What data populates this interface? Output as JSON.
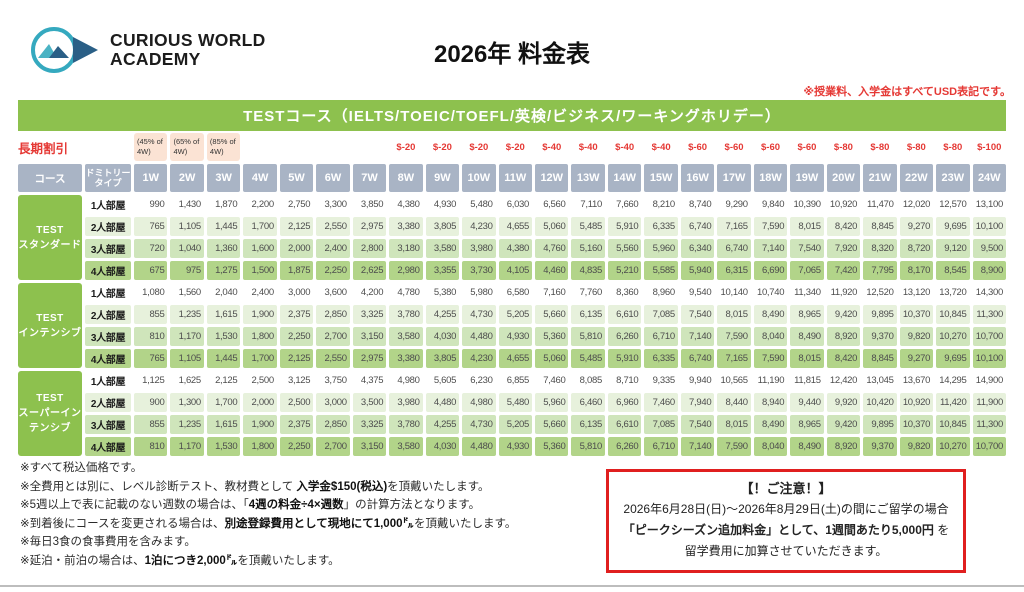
{
  "header": {
    "logo_line1": "CURIOUS WORLD",
    "logo_line2": "ACADEMY",
    "title": "2026年 料金表",
    "usd_note": "※授業料、入学金はすべてUSD表記です。"
  },
  "table": {
    "banner": "TESTコース（IELTS/TOEIC/TOEFL/英検/ビジネス/ワーキングホリデー）",
    "discount_label": "長期割引",
    "discount_cells": [
      {
        "type": "pink",
        "l1": "(45% of",
        "l2": "4W)"
      },
      {
        "type": "pink",
        "l1": "(65% of",
        "l2": "4W)"
      },
      {
        "type": "pink",
        "l1": "(85% of",
        "l2": "4W)"
      },
      {
        "type": "empty"
      },
      {
        "type": "empty"
      },
      {
        "type": "empty"
      },
      {
        "type": "empty"
      },
      {
        "type": "amount",
        "text": "$-20"
      },
      {
        "type": "amount",
        "text": "$-20"
      },
      {
        "type": "amount",
        "text": "$-20"
      },
      {
        "type": "amount",
        "text": "$-20"
      },
      {
        "type": "amount",
        "text": "$-40"
      },
      {
        "type": "amount",
        "text": "$-40"
      },
      {
        "type": "amount",
        "text": "$-40"
      },
      {
        "type": "amount",
        "text": "$-40"
      },
      {
        "type": "amount",
        "text": "$-60"
      },
      {
        "type": "amount",
        "text": "$-60"
      },
      {
        "type": "amount",
        "text": "$-60"
      },
      {
        "type": "amount",
        "text": "$-60"
      },
      {
        "type": "amount",
        "text": "$-80"
      },
      {
        "type": "amount",
        "text": "$-80"
      },
      {
        "type": "amount",
        "text": "$-80"
      },
      {
        "type": "amount",
        "text": "$-80"
      },
      {
        "type": "amount",
        "text": "$-100"
      }
    ],
    "col_course": "コース",
    "col_dorm_lines": [
      "ドミトリー",
      "タイプ"
    ],
    "weeks": [
      "1W",
      "2W",
      "3W",
      "4W",
      "5W",
      "6W",
      "7W",
      "8W",
      "9W",
      "10W",
      "11W",
      "12W",
      "13W",
      "14W",
      "15W",
      "16W",
      "17W",
      "18W",
      "19W",
      "20W",
      "21W",
      "22W",
      "23W",
      "24W"
    ],
    "groups": [
      {
        "course_lines": [
          "TEST",
          "スタンダード"
        ],
        "rows": [
          {
            "room": "1人部屋",
            "values": [
              "990",
              "1,430",
              "1,870",
              "2,200",
              "2,750",
              "3,300",
              "3,850",
              "4,380",
              "4,930",
              "5,480",
              "6,030",
              "6,560",
              "7,110",
              "7,660",
              "8,210",
              "8,740",
              "9,290",
              "9,840",
              "10,390",
              "10,920",
              "11,470",
              "12,020",
              "12,570",
              "13,100"
            ]
          },
          {
            "room": "2人部屋",
            "values": [
              "765",
              "1,105",
              "1,445",
              "1,700",
              "2,125",
              "2,550",
              "2,975",
              "3,380",
              "3,805",
              "4,230",
              "4,655",
              "5,060",
              "5,485",
              "5,910",
              "6,335",
              "6,740",
              "7,165",
              "7,590",
              "8,015",
              "8,420",
              "8,845",
              "9,270",
              "9,695",
              "10,100"
            ]
          },
          {
            "room": "3人部屋",
            "values": [
              "720",
              "1,040",
              "1,360",
              "1,600",
              "2,000",
              "2,400",
              "2,800",
              "3,180",
              "3,580",
              "3,980",
              "4,380",
              "4,760",
              "5,160",
              "5,560",
              "5,960",
              "6,340",
              "6,740",
              "7,140",
              "7,540",
              "7,920",
              "8,320",
              "8,720",
              "9,120",
              "9,500"
            ]
          },
          {
            "room": "4人部屋",
            "values": [
              "675",
              "975",
              "1,275",
              "1,500",
              "1,875",
              "2,250",
              "2,625",
              "2,980",
              "3,355",
              "3,730",
              "4,105",
              "4,460",
              "4,835",
              "5,210",
              "5,585",
              "5,940",
              "6,315",
              "6,690",
              "7,065",
              "7,420",
              "7,795",
              "8,170",
              "8,545",
              "8,900"
            ]
          }
        ]
      },
      {
        "course_lines": [
          "TEST",
          "インテンシブ"
        ],
        "rows": [
          {
            "room": "1人部屋",
            "values": [
              "1,080",
              "1,560",
              "2,040",
              "2,400",
              "3,000",
              "3,600",
              "4,200",
              "4,780",
              "5,380",
              "5,980",
              "6,580",
              "7,160",
              "7,760",
              "8,360",
              "8,960",
              "9,540",
              "10,140",
              "10,740",
              "11,340",
              "11,920",
              "12,520",
              "13,120",
              "13,720",
              "14,300"
            ]
          },
          {
            "room": "2人部屋",
            "values": [
              "855",
              "1,235",
              "1,615",
              "1,900",
              "2,375",
              "2,850",
              "3,325",
              "3,780",
              "4,255",
              "4,730",
              "5,205",
              "5,660",
              "6,135",
              "6,610",
              "7,085",
              "7,540",
              "8,015",
              "8,490",
              "8,965",
              "9,420",
              "9,895",
              "10,370",
              "10,845",
              "11,300"
            ]
          },
          {
            "room": "3人部屋",
            "values": [
              "810",
              "1,170",
              "1,530",
              "1,800",
              "2,250",
              "2,700",
              "3,150",
              "3,580",
              "4,030",
              "4,480",
              "4,930",
              "5,360",
              "5,810",
              "6,260",
              "6,710",
              "7,140",
              "7,590",
              "8,040",
              "8,490",
              "8,920",
              "9,370",
              "9,820",
              "10,270",
              "10,700"
            ]
          },
          {
            "room": "4人部屋",
            "values": [
              "765",
              "1,105",
              "1,445",
              "1,700",
              "2,125",
              "2,550",
              "2,975",
              "3,380",
              "3,805",
              "4,230",
              "4,655",
              "5,060",
              "5,485",
              "5,910",
              "6,335",
              "6,740",
              "7,165",
              "7,590",
              "8,015",
              "8,420",
              "8,845",
              "9,270",
              "9,695",
              "10,100"
            ]
          }
        ]
      },
      {
        "course_lines": [
          "TEST",
          "スーパーイン",
          "テンシブ"
        ],
        "rows": [
          {
            "room": "1人部屋",
            "values": [
              "1,125",
              "1,625",
              "2,125",
              "2,500",
              "3,125",
              "3,750",
              "4,375",
              "4,980",
              "5,605",
              "6,230",
              "6,855",
              "7,460",
              "8,085",
              "8,710",
              "9,335",
              "9,940",
              "10,565",
              "11,190",
              "11,815",
              "12,420",
              "13,045",
              "13,670",
              "14,295",
              "14,900"
            ]
          },
          {
            "room": "2人部屋",
            "values": [
              "900",
              "1,300",
              "1,700",
              "2,000",
              "2,500",
              "3,000",
              "3,500",
              "3,980",
              "4,480",
              "4,980",
              "5,480",
              "5,960",
              "6,460",
              "6,960",
              "7,460",
              "7,940",
              "8,440",
              "8,940",
              "9,440",
              "9,920",
              "10,420",
              "10,920",
              "11,420",
              "11,900"
            ]
          },
          {
            "room": "3人部屋",
            "values": [
              "855",
              "1,235",
              "1,615",
              "1,900",
              "2,375",
              "2,850",
              "3,325",
              "3,780",
              "4,255",
              "4,730",
              "5,205",
              "5,660",
              "6,135",
              "6,610",
              "7,085",
              "7,540",
              "8,015",
              "8,490",
              "8,965",
              "9,420",
              "9,895",
              "10,370",
              "10,845",
              "11,300"
            ]
          },
          {
            "room": "4人部屋",
            "values": [
              "810",
              "1,170",
              "1,530",
              "1,800",
              "2,250",
              "2,700",
              "3,150",
              "3,580",
              "4,030",
              "4,480",
              "4,930",
              "5,360",
              "5,810",
              "6,260",
              "6,710",
              "7,140",
              "7,590",
              "8,040",
              "8,490",
              "8,920",
              "9,370",
              "9,820",
              "10,270",
              "10,700"
            ]
          }
        ]
      }
    ]
  },
  "footnotes": [
    [
      {
        "t": "※すべて税込価格です。",
        "b": false
      }
    ],
    [
      {
        "t": "※全費用とは別に、レベル診断テスト、教材費として ",
        "b": false
      },
      {
        "t": "入学金$150(税込)",
        "b": true
      },
      {
        "t": "を頂戴いたします。",
        "b": false
      }
    ],
    [
      {
        "t": "※5週以上で表に記載のない週数の場合は、「",
        "b": false
      },
      {
        "t": "4週の料金÷4×週数",
        "b": true
      },
      {
        "t": "」の計算方法となります。",
        "b": false
      }
    ],
    [
      {
        "t": "※到着後にコースを変更される場合は、",
        "b": false
      },
      {
        "t": "別途登録費用として現地にて1,000㌦",
        "b": true
      },
      {
        "t": "を頂戴いたします。",
        "b": false
      }
    ],
    [
      {
        "t": "※毎日3食の食事費用を含みます。",
        "b": false
      }
    ],
    [
      {
        "t": "※延泊・前泊の場合は、",
        "b": false
      },
      {
        "t": "1泊につき2,000㌦",
        "b": true
      },
      {
        "t": "を頂戴いたします。",
        "b": false
      }
    ]
  ],
  "notice": {
    "title": "【！ご注意！】",
    "lines": [
      [
        {
          "t": "2026年6月28日(日)～2026年8月29日(土)の間にご留学の場合",
          "b": false
        }
      ],
      [
        {
          "t": "「ピークシーズン追加料金」として、1週間あたり5,000円",
          "b": true
        },
        {
          "t": " を",
          "b": false
        }
      ],
      [
        {
          "t": "留学費用に加算させていただきます。",
          "b": false
        }
      ]
    ]
  },
  "colors": {
    "accent_green": "#8dc14e",
    "header_blue_gray": "#a9b4c5",
    "row_light_green": "#e7f1dc",
    "row_mid_green": "#cfe5bb",
    "row_dark_green": "#b2d489",
    "discount_pink": "#fbe3d4",
    "accent_red": "#e53935",
    "notice_border_red": "#e01f1f",
    "logo_teal": "#35a9bf",
    "logo_navy": "#2a5f86"
  }
}
